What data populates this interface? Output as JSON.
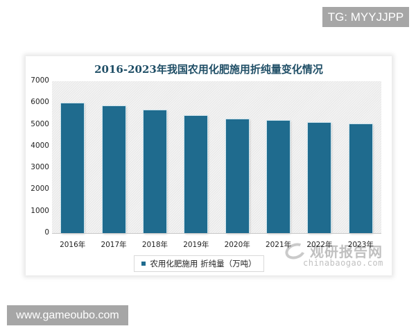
{
  "overlays": {
    "tg_label": "TG: MYYJJPP",
    "site_label": "www.gameoubo.com"
  },
  "watermark": {
    "cn": "观研报告网",
    "en": "chinabaogao.com"
  },
  "colors": {
    "bar": "#1f6b8e",
    "title": "#1f4e66"
  },
  "chart_data": {
    "type": "bar",
    "title": "2016-2023年我国农用化肥施用折纯量变化情况",
    "categories": [
      "2016年",
      "2017年",
      "2018年",
      "2019年",
      "2020年",
      "2021年",
      "2022年",
      "2023年"
    ],
    "series": [
      {
        "name": "农用化肥施用 折纯量（万吨）",
        "values": [
          5984,
          5859,
          5653,
          5404,
          5251,
          5191,
          5079,
          5022
        ]
      }
    ],
    "xlabel": "",
    "ylabel": "",
    "ylim": [
      0,
      7000
    ],
    "yticks": [
      "7000",
      "6000",
      "5000",
      "4000",
      "3000",
      "2000",
      "1000",
      "0"
    ],
    "grid": false,
    "legend_position": "bottom"
  }
}
